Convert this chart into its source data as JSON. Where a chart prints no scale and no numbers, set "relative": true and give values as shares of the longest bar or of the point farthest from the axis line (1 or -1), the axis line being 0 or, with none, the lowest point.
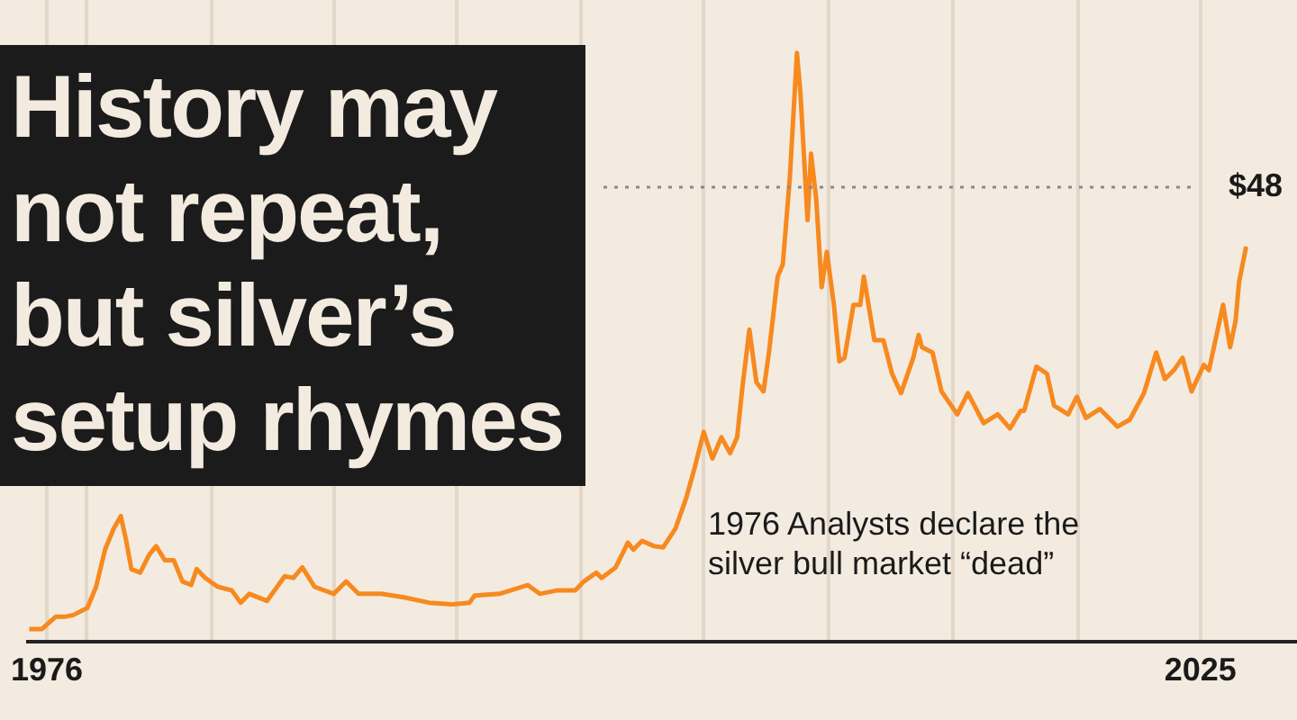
{
  "chart_data": {
    "type": "line",
    "title": "History may not repeat, but silver’s setup rhymes",
    "annotations": [
      "1976 Analysts declare the silver bull market “dead”",
      "$48"
    ],
    "relative": true,
    "xlim": [
      1975.2,
      2029.1
    ],
    "xticks": [
      1976,
      {
        "value": 1977.7,
        "label": null
      },
      {
        "value": 1983,
        "label": null
      },
      {
        "value": 1988.2,
        "label": null
      },
      {
        "value": 1993.4,
        "label": null
      },
      {
        "value": 1998.7,
        "label": null
      },
      {
        "value": 2003.9,
        "label": null
      },
      {
        "value": 2009.2,
        "label": null
      },
      {
        "value": 2014.5,
        "label": null
      },
      {
        "value": 2019.8,
        "label": null
      },
      2025
    ],
    "grid": "x",
    "ref_lines": [
      {
        "axis": "y",
        "value": 0.772,
        "color": "#8a8a8a",
        "line_style": "dotted"
      }
    ],
    "x": [
      1975.25,
      1975.78,
      1976.37,
      1976.75,
      1977.12,
      1977.72,
      1978.09,
      1978.47,
      1978.84,
      1979.14,
      1979.37,
      1979.59,
      1979.96,
      1980.34,
      1980.64,
      1981.01,
      1981.39,
      1981.76,
      1982.13,
      1982.36,
      1982.73,
      1983.26,
      1983.85,
      1984.23,
      1984.6,
      1985.35,
      1986.1,
      1986.47,
      1986.85,
      1987.37,
      1988.19,
      1988.71,
      1989.24,
      1990.21,
      1991.18,
      1992.23,
      1993.2,
      1993.95,
      1994.17,
      1995.22,
      1996.42,
      1996.94,
      1997.69,
      1998.44,
      1998.81,
      1999.34,
      1999.56,
      2000.16,
      2000.68,
      2000.91,
      2001.28,
      2001.8,
      2002.18,
      2002.7,
      2003.15,
      2003.52,
      2003.9,
      2004.27,
      2004.65,
      2005.02,
      2005.32,
      2005.54,
      2005.84,
      2006.14,
      2006.44,
      2006.67,
      2007.04,
      2007.26,
      2007.56,
      2007.86,
      2008.01,
      2008.31,
      2008.46,
      2008.68,
      2008.91,
      2009.13,
      2009.43,
      2009.66,
      2009.88,
      2010.26,
      2010.55,
      2010.7,
      2011.15,
      2011.53,
      2011.9,
      2012.28,
      2012.8,
      2013.03,
      2013.17,
      2013.62,
      2014.0,
      2014.67,
      2015.12,
      2015.79,
      2016.39,
      2016.91,
      2017.36,
      2017.51,
      2018.03,
      2018.48,
      2018.78,
      2019.38,
      2019.75,
      2020.13,
      2020.73,
      2021.47,
      2022.0,
      2022.6,
      2023.12,
      2023.49,
      2023.87,
      2024.24,
      2024.62,
      2025.14,
      2025.36,
      2025.96,
      2026.26,
      2026.49,
      2026.64,
      2026.94
    ],
    "series": [
      {
        "color": "#f7891f",
        "values": [
          0.021,
          0.021,
          0.042,
          0.042,
          0.045,
          0.057,
          0.093,
          0.156,
          0.192,
          0.213,
          0.171,
          0.123,
          0.117,
          0.147,
          0.162,
          0.138,
          0.138,
          0.102,
          0.096,
          0.123,
          0.108,
          0.093,
          0.087,
          0.066,
          0.081,
          0.069,
          0.111,
          0.108,
          0.126,
          0.093,
          0.081,
          0.102,
          0.081,
          0.081,
          0.075,
          0.066,
          0.063,
          0.066,
          0.078,
          0.081,
          0.096,
          0.081,
          0.087,
          0.087,
          0.102,
          0.117,
          0.108,
          0.126,
          0.168,
          0.156,
          0.171,
          0.162,
          0.16,
          0.192,
          0.243,
          0.296,
          0.356,
          0.311,
          0.347,
          0.32,
          0.347,
          0.431,
          0.53,
          0.44,
          0.425,
          0.491,
          0.62,
          0.641,
          0.79,
          1,
          0.931,
          0.716,
          0.829,
          0.751,
          0.602,
          0.662,
          0.572,
          0.476,
          0.482,
          0.572,
          0.572,
          0.62,
          0.512,
          0.512,
          0.455,
          0.422,
          0.482,
          0.521,
          0.5,
          0.491,
          0.425,
          0.386,
          0.422,
          0.371,
          0.386,
          0.362,
          0.392,
          0.392,
          0.467,
          0.455,
          0.401,
          0.386,
          0.416,
          0.38,
          0.395,
          0.365,
          0.377,
          0.422,
          0.491,
          0.446,
          0.461,
          0.482,
          0.425,
          0.47,
          0.461,
          0.572,
          0.5,
          0.545,
          0.611,
          0.671
        ]
      }
    ]
  }
}
